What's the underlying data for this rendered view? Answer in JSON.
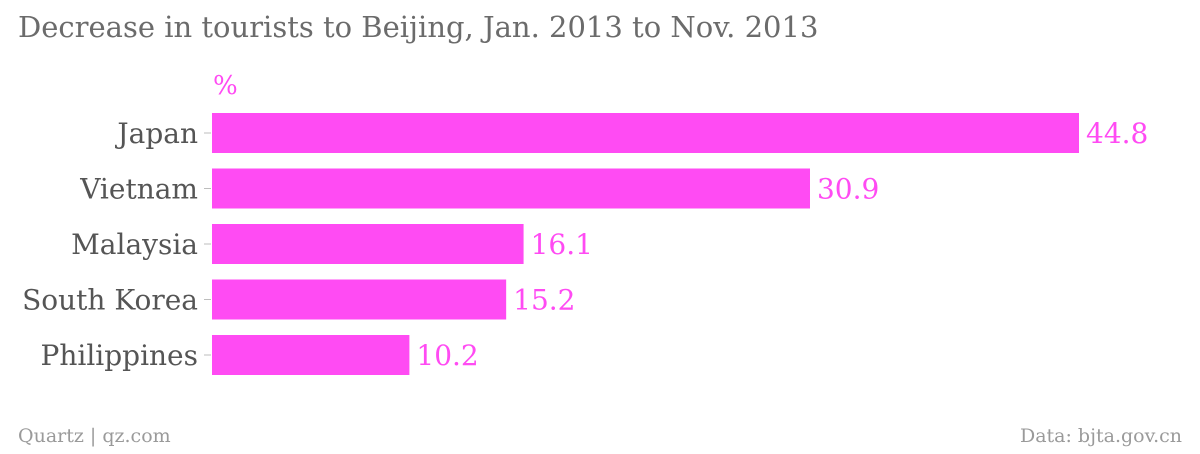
{
  "title": "Decrease in tourists to Beijing, Jan. 2013 to Nov. 2013",
  "footer": {
    "credit": "Quartz | qz.com",
    "source": "Data: bjta.gov.cn"
  },
  "colors": {
    "bar": "#ff4bf3",
    "value_label": "#ff4bf3",
    "category_label": "#555555",
    "tick": "#bdbdbd"
  },
  "chart_data": {
    "type": "bar",
    "orientation": "horizontal",
    "unit": "%",
    "categories": [
      "Japan",
      "Vietnam",
      "Malaysia",
      "South Korea",
      "Philippines"
    ],
    "values": [
      44.8,
      30.9,
      16.1,
      15.2,
      10.2
    ],
    "xlim": [
      0,
      44.8
    ],
    "grid": false,
    "legend": "none"
  }
}
